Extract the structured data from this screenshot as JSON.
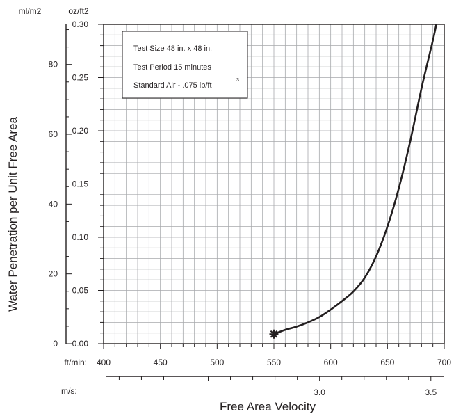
{
  "chart_data": {
    "type": "line",
    "ylabel": "Water Penetration per Unit Free Area",
    "xlabel": "Free Area Velocity",
    "y_units_left": "ml/m2",
    "y_units_right": "oz/ft2",
    "x_units_top": "ft/min:",
    "x_units_bottom": "m/s:",
    "legend": {
      "placement": "top-left",
      "lines": [
        "Test Size 48 in. x 48 in.",
        "Test Period 15 minutes",
        "Standard Air - .075 lb/ft"
      ],
      "superscript": "3"
    },
    "x_ticks_ftmin": [
      "400",
      "450",
      "500",
      "550",
      "600",
      "650",
      "700"
    ],
    "x_ticks_ms": [
      "3.0",
      "3.5"
    ],
    "y_ticks_ozft2": [
      "0.00",
      "0.05",
      "0.10",
      "0.15",
      "0.20",
      "0.25",
      "0.30"
    ],
    "y_ticks_mlm2": [
      "0",
      "20",
      "40",
      "60",
      "80"
    ],
    "xlim": [
      400,
      700
    ],
    "ylim": [
      0,
      0.3
    ],
    "ylim_mlm2": [
      0,
      91.5
    ],
    "xlim_ms": [
      2.03,
      3.56
    ],
    "grid": true,
    "series": [
      {
        "x": [
          550,
          560,
          570,
          580,
          590,
          600,
          610,
          620,
          630,
          640,
          650,
          660,
          670,
          680,
          690,
          693
        ],
        "y": [
          0.009,
          0.013,
          0.016,
          0.02,
          0.025,
          0.032,
          0.04,
          0.049,
          0.062,
          0.082,
          0.11,
          0.146,
          0.19,
          0.24,
          0.285,
          0.3
        ]
      }
    ],
    "start_marker": "asterisk-icon",
    "colors": {
      "line": "#231f20",
      "grid": "#a7a9ac",
      "axis": "#231f20"
    }
  }
}
